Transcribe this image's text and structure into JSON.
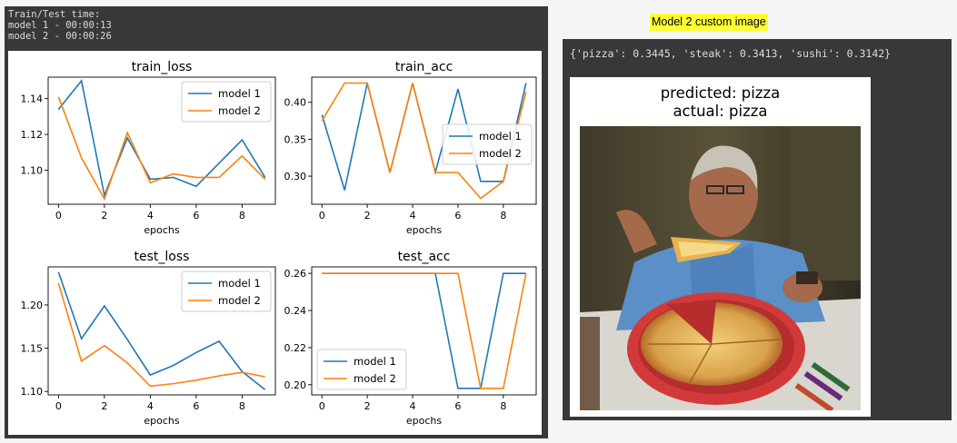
{
  "console": {
    "lines": [
      "Train/Test time:",
      "model 1 - 00:00:13",
      "model 2 - 00:00:26"
    ]
  },
  "colors": {
    "model_1": "#1f77b4",
    "model_2": "#ff7f0e"
  },
  "epochs_label": "epochs",
  "chart_data": [
    {
      "type": "line",
      "title": "train_loss",
      "xlabel": "epochs",
      "ylabel": "",
      "x": [
        0,
        1,
        2,
        3,
        4,
        5,
        6,
        7,
        8,
        9
      ],
      "ylim": [
        1.081,
        1.152
      ],
      "yticks": [
        1.1,
        1.12,
        1.14
      ],
      "legend": "upper-right",
      "series": [
        {
          "name": "model 1",
          "values": [
            1.134,
            1.15,
            1.086,
            1.118,
            1.095,
            1.096,
            1.091,
            1.104,
            1.117,
            1.096
          ]
        },
        {
          "name": "model 2",
          "values": [
            1.141,
            1.107,
            1.084,
            1.121,
            1.093,
            1.098,
            1.096,
            1.096,
            1.108,
            1.095
          ]
        }
      ]
    },
    {
      "type": "line",
      "title": "train_acc",
      "xlabel": "epochs",
      "ylabel": "",
      "x": [
        0,
        1,
        2,
        3,
        4,
        5,
        6,
        7,
        8,
        9
      ],
      "ylim": [
        0.262,
        0.434
      ],
      "yticks": [
        0.3,
        0.35,
        0.4
      ],
      "legend": "center-right",
      "series": [
        {
          "name": "model 1",
          "values": [
            0.383,
            0.281,
            0.426,
            0.305,
            0.426,
            0.305,
            0.418,
            0.293,
            0.293,
            0.426
          ]
        },
        {
          "name": "model 2",
          "values": [
            0.375,
            0.426,
            0.426,
            0.305,
            0.426,
            0.305,
            0.305,
            0.27,
            0.293,
            0.414
          ]
        }
      ]
    },
    {
      "type": "line",
      "title": "test_loss",
      "xlabel": "epochs",
      "ylabel": "",
      "x": [
        0,
        1,
        2,
        3,
        4,
        5,
        6,
        7,
        8,
        9
      ],
      "ylim": [
        1.096,
        1.244
      ],
      "yticks": [
        1.1,
        1.15,
        1.2
      ],
      "legend": "upper-right",
      "series": [
        {
          "name": "model 1",
          "values": [
            1.238,
            1.161,
            1.199,
            1.16,
            1.119,
            1.13,
            1.145,
            1.158,
            1.123,
            1.102
          ]
        },
        {
          "name": "model 2",
          "values": [
            1.225,
            1.135,
            1.153,
            1.133,
            1.106,
            1.109,
            1.113,
            1.118,
            1.122,
            1.117
          ]
        }
      ]
    },
    {
      "type": "line",
      "title": "test_acc",
      "xlabel": "epochs",
      "ylabel": "",
      "x": [
        0,
        1,
        2,
        3,
        4,
        5,
        6,
        7,
        8,
        9
      ],
      "ylim": [
        0.1945,
        0.2635
      ],
      "yticks": [
        0.2,
        0.22,
        0.24,
        0.26
      ],
      "legend": "lower-left",
      "series": [
        {
          "name": "model 1",
          "values": [
            0.26,
            0.26,
            0.26,
            0.26,
            0.26,
            0.26,
            0.198,
            0.198,
            0.26,
            0.26
          ]
        },
        {
          "name": "model 2",
          "values": [
            0.26,
            0.26,
            0.26,
            0.26,
            0.26,
            0.26,
            0.26,
            0.198,
            0.198,
            0.26
          ]
        }
      ]
    }
  ],
  "custom_image": {
    "title": "Model 2 custom image",
    "probabilities": "{'pizza': 0.3445, 'steak': 0.3413, 'sushi': 0.3142}",
    "predicted": "predicted: pizza",
    "actual": "actual: pizza"
  }
}
